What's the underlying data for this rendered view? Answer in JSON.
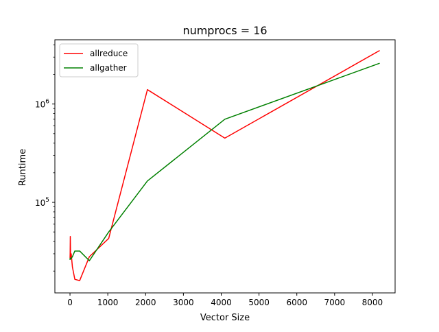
{
  "chart_data": {
    "type": "line",
    "title": "numprocs = 16",
    "xlabel": "Vector Size",
    "ylabel": "Runtime",
    "xlim": [
      -400,
      8600
    ],
    "ylim": [
      12000,
      4500000
    ],
    "yscale": "log",
    "grid": false,
    "legend_position": "top-left",
    "x_ticks": [
      0,
      1000,
      2000,
      3000,
      4000,
      5000,
      6000,
      7000,
      8000
    ],
    "x_tick_labels": [
      "0",
      "1000",
      "2000",
      "3000",
      "4000",
      "5000",
      "6000",
      "7000",
      "8000"
    ],
    "y_major_ticks": [
      {
        "value": 100000,
        "base": "10",
        "exp": "5"
      },
      {
        "value": 1000000,
        "base": "10",
        "exp": "6"
      }
    ],
    "y_minor_ticks": [
      20000,
      30000,
      40000,
      50000,
      60000,
      70000,
      80000,
      90000,
      200000,
      300000,
      400000,
      500000,
      600000,
      700000,
      800000,
      900000,
      2000000,
      3000000,
      4000000
    ],
    "series": [
      {
        "name": "allreduce",
        "color": "#ff0000",
        "x": [
          1,
          2,
          4,
          8,
          16,
          32,
          64,
          128,
          256,
          512,
          1024,
          2048,
          4096,
          8192
        ],
        "y": [
          27000,
          28000,
          30000,
          45000,
          27000,
          30000,
          22000,
          16500,
          16000,
          28000,
          43000,
          1400000,
          450000,
          3500000
        ]
      },
      {
        "name": "allgather",
        "color": "#008000",
        "x": [
          1,
          2,
          4,
          8,
          16,
          32,
          64,
          128,
          256,
          512,
          1024,
          2048,
          4096,
          8192
        ],
        "y": [
          26000,
          26500,
          27000,
          27000,
          26500,
          27000,
          28000,
          32000,
          32000,
          25500,
          50000,
          165000,
          700000,
          2600000
        ]
      }
    ]
  }
}
